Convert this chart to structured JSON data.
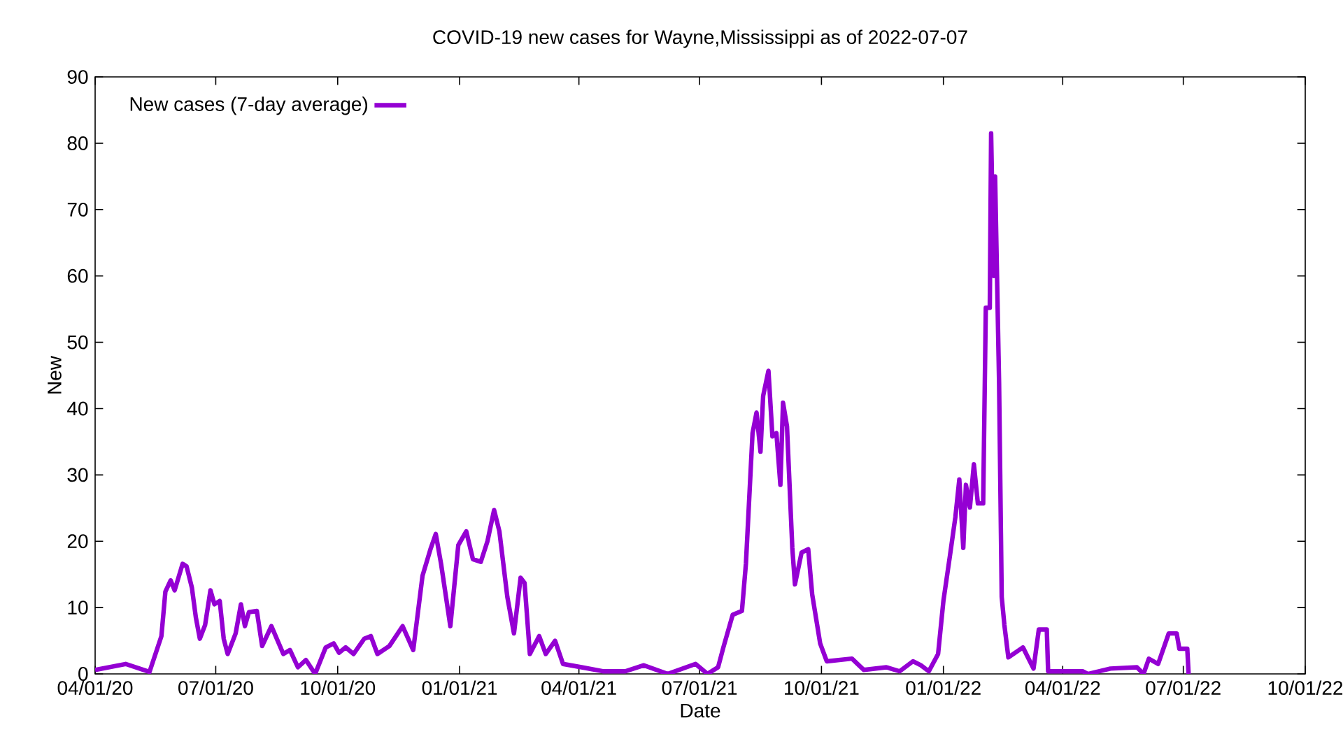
{
  "chart_data": {
    "type": "line",
    "title": "COVID-19 new cases for Wayne,Mississippi as of 2022-07-07",
    "xlabel": "Date",
    "ylabel": "New",
    "x": [
      "2020-04-01",
      "2020-04-24",
      "2020-05-12",
      "2020-05-21",
      "2020-05-24",
      "2020-05-28",
      "2020-05-31",
      "2020-06-06",
      "2020-06-09",
      "2020-06-13",
      "2020-06-16",
      "2020-06-19",
      "2020-06-23",
      "2020-06-27",
      "2020-06-30",
      "2020-07-04",
      "2020-07-07",
      "2020-07-10",
      "2020-07-16",
      "2020-07-20",
      "2020-07-23",
      "2020-07-26",
      "2020-08-01",
      "2020-08-05",
      "2020-08-12",
      "2020-08-21",
      "2020-08-26",
      "2020-09-01",
      "2020-09-07",
      "2020-09-14",
      "2020-09-22",
      "2020-09-28",
      "2020-10-02",
      "2020-10-07",
      "2020-10-13",
      "2020-10-21",
      "2020-10-26",
      "2020-10-31",
      "2020-11-09",
      "2020-11-19",
      "2020-11-27",
      "2020-12-04",
      "2020-12-10",
      "2020-12-14",
      "2020-12-18",
      "2020-12-25",
      "2020-12-31",
      "2021-01-06",
      "2021-01-11",
      "2021-01-17",
      "2021-01-22",
      "2021-01-27",
      "2021-01-31",
      "2021-02-06",
      "2021-02-11",
      "2021-02-16",
      "2021-02-19",
      "2021-02-23",
      "2021-03-02",
      "2021-03-07",
      "2021-03-14",
      "2021-03-20",
      "2021-04-03",
      "2021-04-19",
      "2021-05-06",
      "2021-05-20",
      "2021-06-07",
      "2021-06-28",
      "2021-07-07",
      "2021-07-15",
      "2021-07-19",
      "2021-07-26",
      "2021-08-02",
      "2021-08-05",
      "2021-08-10",
      "2021-08-13",
      "2021-08-16",
      "2021-08-18",
      "2021-08-22",
      "2021-08-25",
      "2021-08-28",
      "2021-08-31",
      "2021-09-02",
      "2021-09-05",
      "2021-09-09",
      "2021-09-11",
      "2021-09-16",
      "2021-09-21",
      "2021-09-24",
      "2021-09-30",
      "2021-10-05",
      "2021-10-24",
      "2021-11-02",
      "2021-11-19",
      "2021-11-29",
      "2021-12-09",
      "2021-12-15",
      "2021-12-21",
      "2021-12-28",
      "2022-01-01",
      "2022-01-06",
      "2022-01-10",
      "2022-01-13",
      "2022-01-16",
      "2022-01-18",
      "2022-01-21",
      "2022-01-24",
      "2022-01-27",
      "2022-01-31",
      "2022-02-02",
      "2022-02-05",
      "2022-02-06",
      "2022-02-08",
      "2022-02-09",
      "2022-02-12",
      "2022-02-14",
      "2022-02-16",
      "2022-02-19",
      "2022-03-02",
      "2022-03-10",
      "2022-03-14",
      "2022-03-20",
      "2022-03-21",
      "2022-04-16",
      "2022-04-20",
      "2022-05-07",
      "2022-05-27",
      "2022-06-01",
      "2022-06-05",
      "2022-06-12",
      "2022-06-20",
      "2022-06-26",
      "2022-06-28",
      "2022-07-04",
      "2022-07-05"
    ],
    "series": [
      {
        "name": "New cases (7-day average)",
        "color": "#9400d3",
        "values": [
          0.6,
          1.5,
          0.3,
          5.7,
          12.4,
          14.1,
          12.6,
          16.6,
          16.2,
          13,
          8.5,
          5.3,
          7.4,
          12.6,
          10.5,
          11,
          5.3,
          3,
          6.1,
          10.5,
          7.2,
          9.3,
          9.5,
          4.2,
          7.2,
          3,
          3.6,
          1,
          2.1,
          0,
          4,
          4.6,
          3.2,
          4,
          3,
          5.3,
          5.7,
          3,
          4.2,
          7.2,
          3.6,
          14.8,
          18.8,
          21.1,
          16.6,
          7.2,
          19.4,
          21.5,
          17.3,
          16.9,
          20,
          24.7,
          21.5,
          11.6,
          6.1,
          14.5,
          13.7,
          3,
          5.7,
          3,
          5,
          1.5,
          1,
          0.4,
          0.4,
          1.3,
          0,
          1.5,
          0,
          1,
          4,
          8.9,
          9.5,
          16.6,
          36.3,
          39.4,
          33.5,
          41.9,
          45.7,
          35.8,
          36.3,
          28.5,
          40.9,
          37.3,
          19,
          13.5,
          18.3,
          18.8,
          12,
          4.6,
          1.9,
          2.3,
          0.6,
          1,
          0.4,
          1.9,
          1.3,
          0.4,
          3,
          11,
          17.9,
          23.6,
          29.3,
          19,
          28.5,
          25.1,
          31.6,
          25.7,
          25.7,
          55.2,
          55.2,
          81.5,
          60,
          75,
          44,
          11.6,
          7.4,
          2.5,
          4,
          0.8,
          6.7,
          6.7,
          0.4,
          0.4,
          0,
          0.8,
          1,
          0,
          2.3,
          1.5,
          6.1,
          6.1,
          3.8,
          3.8,
          0
        ]
      }
    ],
    "xlim": [
      "2020-04-01",
      "2022-10-01"
    ],
    "xticks": [
      {
        "value": "2020-04-01",
        "label": "04/01/20"
      },
      {
        "value": "2020-07-01",
        "label": "07/01/20"
      },
      {
        "value": "2020-10-01",
        "label": "10/01/20"
      },
      {
        "value": "2021-01-01",
        "label": "01/01/21"
      },
      {
        "value": "2021-04-01",
        "label": "04/01/21"
      },
      {
        "value": "2021-07-01",
        "label": "07/01/21"
      },
      {
        "value": "2021-10-01",
        "label": "10/01/21"
      },
      {
        "value": "2022-01-01",
        "label": "01/01/22"
      },
      {
        "value": "2022-04-01",
        "label": "04/01/22"
      },
      {
        "value": "2022-07-01",
        "label": "07/01/22"
      },
      {
        "value": "2022-10-01",
        "label": "10/01/22"
      }
    ],
    "ylim": [
      0,
      90
    ],
    "yticks": [
      0,
      10,
      20,
      30,
      40,
      50,
      60,
      70,
      80,
      90
    ],
    "legend": "top left",
    "grid": false,
    "marker": "none",
    "line_style": "solid"
  }
}
